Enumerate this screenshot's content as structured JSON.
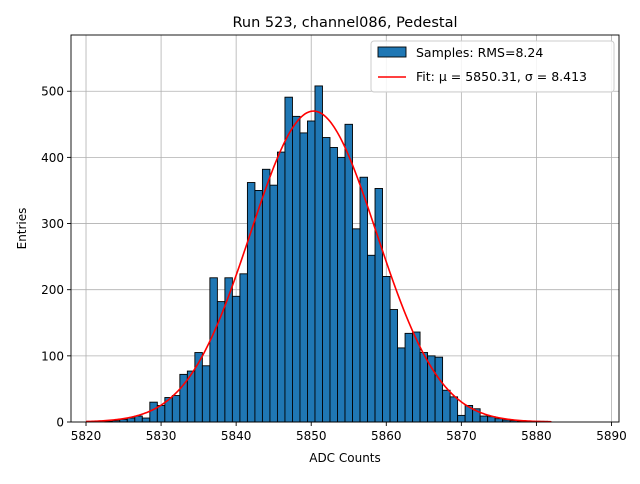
{
  "chart_data": {
    "type": "bar",
    "title": "Run 523, channel086, Pedestal",
    "xlabel": "ADC Counts",
    "ylabel": "Entries",
    "xlim": [
      5818,
      5891
    ],
    "ylim": [
      0,
      585
    ],
    "xticks": [
      5820,
      5830,
      5840,
      5850,
      5860,
      5870,
      5880,
      5890
    ],
    "yticks": [
      0,
      100,
      200,
      300,
      400,
      500
    ],
    "grid": true,
    "legend_position": "top-right",
    "bin_width": 1,
    "histogram": {
      "name": "Samples: RMS=8.24",
      "color": "#1f77b4",
      "edgecolor": "#000000",
      "x": [
        5823,
        5824,
        5825,
        5826,
        5827,
        5828,
        5829,
        5830,
        5831,
        5832,
        5833,
        5834,
        5835,
        5836,
        5837,
        5838,
        5839,
        5840,
        5841,
        5842,
        5843,
        5844,
        5845,
        5846,
        5847,
        5848,
        5849,
        5850,
        5851,
        5852,
        5853,
        5854,
        5855,
        5856,
        5857,
        5858,
        5859,
        5860,
        5861,
        5862,
        5863,
        5864,
        5865,
        5866,
        5867,
        5868,
        5869,
        5870,
        5871,
        5872,
        5873,
        5874,
        5875,
        5876,
        5877,
        5878,
        5879,
        5880,
        5881
      ],
      "values": [
        1,
        2,
        4,
        6,
        9,
        6,
        30,
        25,
        37,
        40,
        72,
        77,
        105,
        85,
        218,
        182,
        218,
        190,
        224,
        362,
        350,
        382,
        358,
        408,
        491,
        462,
        437,
        455,
        508,
        430,
        415,
        400,
        450,
        292,
        370,
        252,
        353,
        220,
        170,
        112,
        134,
        136,
        105,
        100,
        98,
        48,
        38,
        10,
        25,
        20,
        9,
        8,
        5,
        3,
        2,
        1,
        1,
        1,
        1
      ]
    },
    "fit": {
      "name": "Fit: μ = 5850.31, σ = 8.413",
      "color": "#ff0000",
      "mu": 5850.31,
      "sigma": 8.413,
      "amplitude": 470,
      "x_range": [
        5820,
        5882
      ]
    }
  }
}
